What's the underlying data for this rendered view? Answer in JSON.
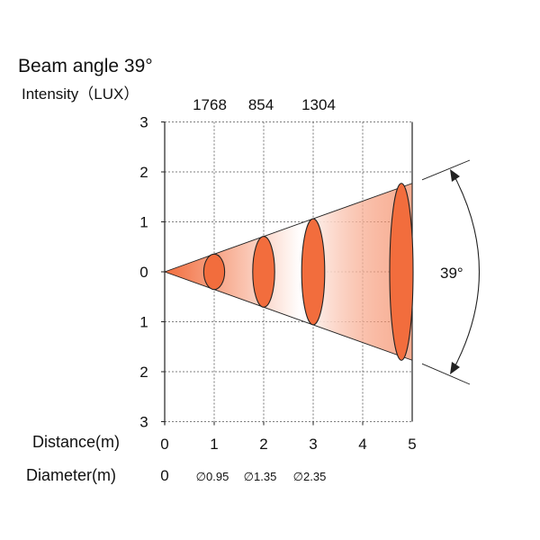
{
  "title": "Beam angle 39°",
  "intensity_label": "Intensity（LUX）",
  "lux_values": [
    "1768",
    "854",
    "1304"
  ],
  "y_ticks": [
    "3",
    "2",
    "1",
    "0",
    "1",
    "2",
    "3"
  ],
  "distance_label": "Distance(m)",
  "distance_ticks": [
    "0",
    "1",
    "2",
    "3",
    "4",
    "5"
  ],
  "diameter_label": "Diameter(m)",
  "diameter_values": [
    "0",
    "∅0.95",
    "∅1.35",
    "∅2.35"
  ],
  "beam_angle_label": "39°",
  "colors": {
    "beam_strong": "#f26d3d",
    "beam_fade": "#ffffff",
    "grid": "#555555",
    "line": "#222222"
  },
  "chart_data": {
    "type": "beam-diagram",
    "beam_angle_deg": 39,
    "distance_m": [
      0,
      1,
      2,
      3,
      4,
      5
    ],
    "spot_distances_m": [
      1,
      2,
      3,
      5
    ],
    "diameter_m": [
      {
        "distance": 1,
        "value": 0.95
      },
      {
        "distance": 2,
        "value": 1.35
      },
      {
        "distance": 3,
        "value": 2.35
      }
    ],
    "intensity_lux": [
      {
        "distance": 1,
        "value": 1768
      },
      {
        "distance": 2,
        "value": 854
      },
      {
        "distance": 3,
        "value": 1304
      }
    ],
    "xlim": [
      0,
      5
    ],
    "ylim": [
      -3,
      3
    ],
    "grid": true
  }
}
